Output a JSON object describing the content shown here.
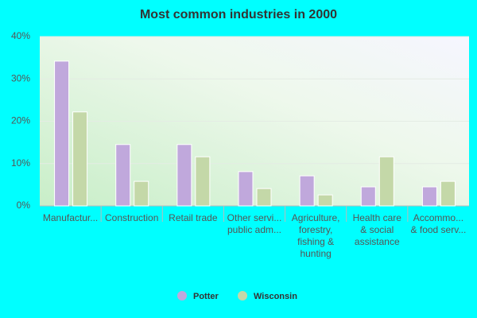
{
  "chart_data": {
    "type": "bar",
    "title": "Most common industries in 2000",
    "categories": [
      [
        "Manufactur..."
      ],
      [
        "Construction"
      ],
      [
        "Retail trade"
      ],
      [
        "Other servi...",
        "public adm..."
      ],
      [
        "Agriculture,",
        "forestry,",
        "fishing &",
        "hunting"
      ],
      [
        "Health care",
        "& social",
        "assistance"
      ],
      [
        "Accommo...",
        "& food serv..."
      ]
    ],
    "series": [
      {
        "name": "Potter",
        "color": "#c0a8dc",
        "values": [
          34.2,
          14.5,
          14.5,
          8.1,
          7.1,
          4.5,
          4.5
        ]
      },
      {
        "name": "Wisconsin",
        "color": "#c4d8a8",
        "values": [
          22.2,
          5.8,
          11.6,
          4.1,
          2.6,
          11.6,
          5.8
        ]
      }
    ],
    "ylim": [
      0,
      40
    ],
    "yticks": [
      {
        "value": 0,
        "label": "0%"
      },
      {
        "value": 10,
        "label": "10%"
      },
      {
        "value": 20,
        "label": "20%"
      },
      {
        "value": 30,
        "label": "30%"
      },
      {
        "value": 40,
        "label": "40%"
      }
    ],
    "grid": true,
    "legend": "bottom"
  }
}
